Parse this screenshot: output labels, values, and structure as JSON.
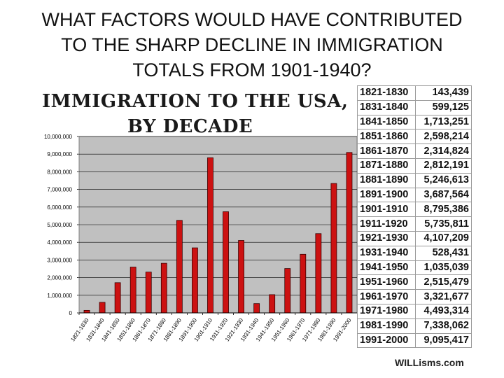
{
  "slide": {
    "title_line1": "WHAT FACTORS WOULD HAVE CONTRIBUTED",
    "title_line2": "TO THE SHARP DECLINE IN IMMIGRATION",
    "title_line3": "TOTALS FROM 1901-1940?"
  },
  "figure": {
    "title_line1": "IMMIGRATION TO THE USA,",
    "title_line2": "BY DECADE",
    "watermark": "WILLisms.com"
  },
  "chart_data": {
    "type": "bar",
    "title": "IMMIGRATION TO THE USA, BY DECADE",
    "xlabel": "",
    "ylabel": "",
    "ylim": [
      0,
      10000000
    ],
    "y_ticks": [
      "0",
      "1,000,000",
      "2,000,000",
      "3,000,000",
      "4,000,000",
      "5,000,000",
      "6,000,000",
      "7,000,000",
      "8,000,000",
      "9,000,000",
      "10,000,000"
    ],
    "grid": true,
    "bar_color": "#cc1111",
    "plot_background": "#c0c0c0",
    "categories": [
      "1821-1830",
      "1831-1840",
      "1841-1850",
      "1851-1860",
      "1861-1870",
      "1871-1880",
      "1881-1890",
      "1891-1900",
      "1901-1910",
      "1911-1920",
      "1921-1930",
      "1931-1940",
      "1941-1950",
      "1951-1960",
      "1961-1970",
      "1971-1980",
      "1981-1990",
      "1991-2000"
    ],
    "values": [
      143439,
      599125,
      1713251,
      2598214,
      2314824,
      2812191,
      5246613,
      3687564,
      8795386,
      5735811,
      4107209,
      528431,
      1035039,
      2515479,
      3321677,
      4493314,
      7338062,
      9095417
    ],
    "value_labels": [
      "143,439",
      "599,125",
      "1,713,251",
      "2,598,214",
      "2,314,824",
      "2,812,191",
      "5,246,613",
      "3,687,564",
      "8,795,386",
      "5,735,811",
      "4,107,209",
      "528,431",
      "1,035,039",
      "2,515,479",
      "3,321,677",
      "4,493,314",
      "7,338,062",
      "9,095,417"
    ]
  }
}
